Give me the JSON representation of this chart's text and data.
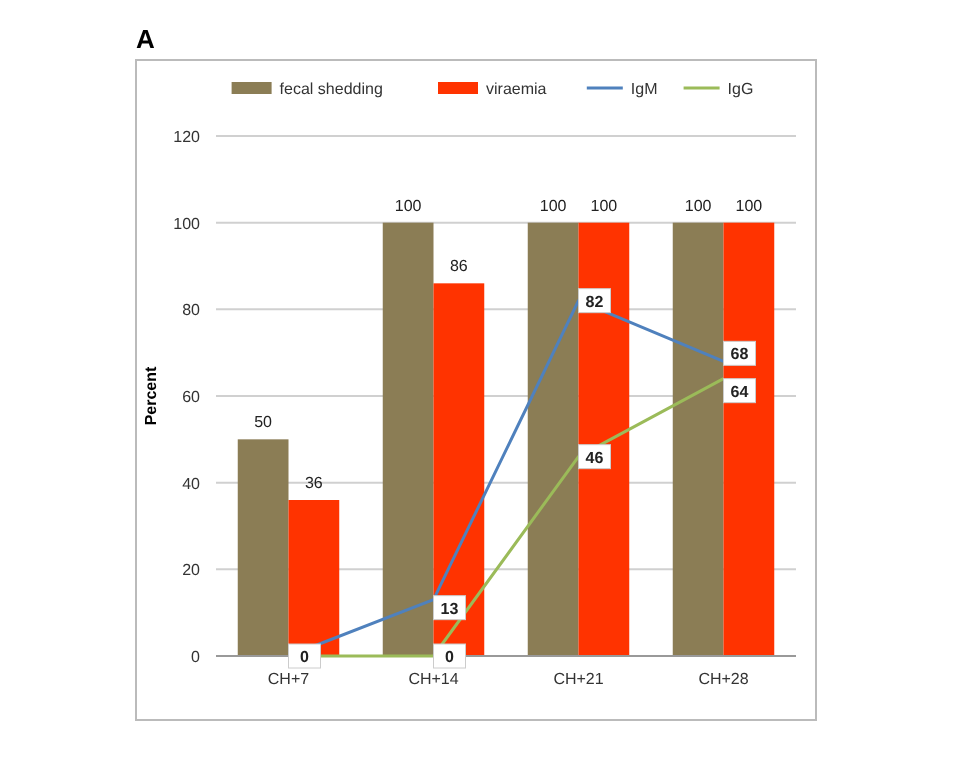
{
  "chart_data": {
    "type": "bar",
    "title": "A",
    "ylabel": "Percent",
    "categories": [
      "CH+7",
      "CH+14",
      "CH+21",
      "CH+28"
    ],
    "series": [
      {
        "name": "fecal shedding",
        "color": "#8b7d55",
        "values": [
          50,
          100,
          100,
          100
        ],
        "value_labels": [
          "50",
          "100",
          "100",
          "100"
        ]
      },
      {
        "name": "viraemia",
        "color": "#ff3300",
        "values": [
          36,
          86,
          100,
          100
        ],
        "value_labels": [
          "36",
          "86",
          "100",
          "100"
        ]
      },
      {
        "name": "IgM",
        "type": "line",
        "color": "#4f81bd",
        "values": [
          0,
          13,
          82,
          68
        ],
        "value_labels": [
          "0",
          "13",
          "82",
          "68"
        ]
      },
      {
        "name": "IgG",
        "type": "line",
        "color": "#9bbb59",
        "values": [
          0,
          0,
          46,
          64
        ],
        "value_labels": [
          null,
          "0",
          "46",
          "64"
        ]
      }
    ],
    "ylim": [
      0,
      120
    ],
    "yticks": [
      0,
      20,
      40,
      60,
      80,
      100,
      120
    ],
    "grid": "y",
    "legend": "top"
  }
}
